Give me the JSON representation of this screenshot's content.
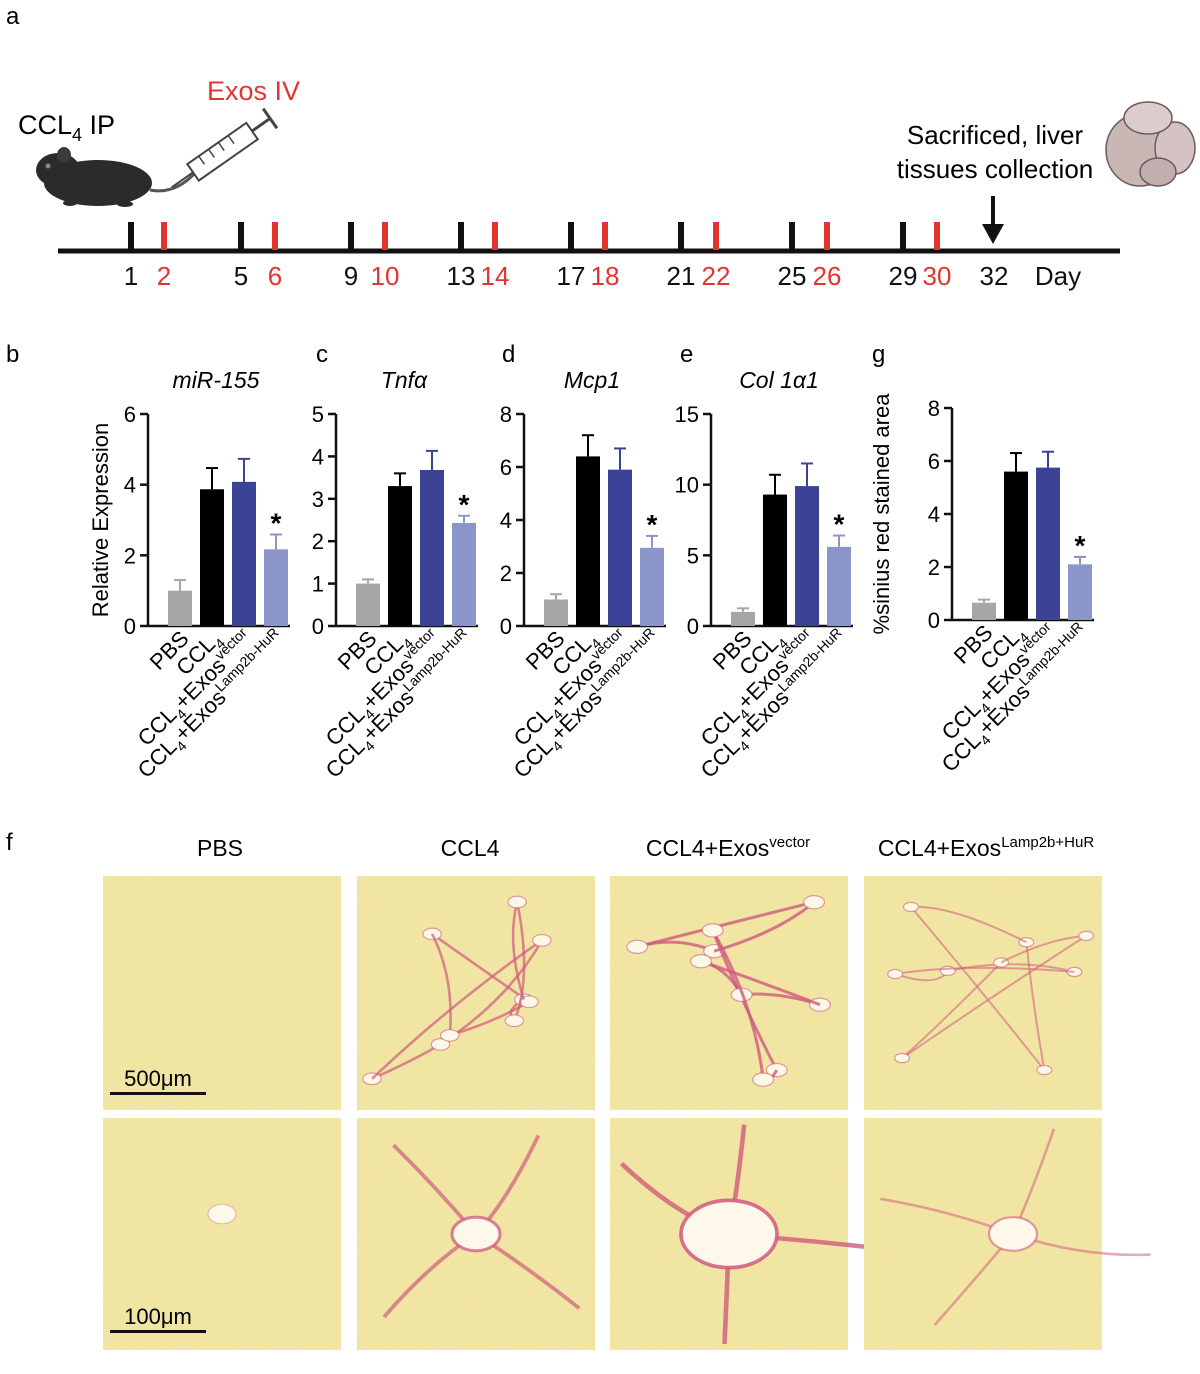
{
  "panels": {
    "a": {
      "letter": "a",
      "mouse_label": "CCL4 IP",
      "mouse_label_main": "CCL",
      "mouse_label_sub": "4",
      "mouse_label_tail": " IP",
      "injection_label": "Exos IV",
      "endpoint_label_line1": "Sacrificed, liver",
      "endpoint_label_line2": "tissues collection",
      "day_unit": "Day",
      "black_days": [
        "1",
        "5",
        "9",
        "13",
        "17",
        "21",
        "25",
        "29"
      ],
      "red_days": [
        "2",
        "6",
        "10",
        "14",
        "18",
        "22",
        "26",
        "30"
      ],
      "final_day": "32"
    },
    "f": {
      "letter": "f",
      "col1": "PBS",
      "col2": "CCL4",
      "col3_main": "CCL4+Exos",
      "col3_sup": "vector",
      "col4_main": "CCL4+Exos",
      "col4_sup": "Lamp2b+HuR",
      "scale_top": "500μm",
      "scale_bottom": "100μm"
    }
  },
  "group_labels": [
    {
      "main": "PBS",
      "sub": "",
      "mid": "",
      "sup": ""
    },
    {
      "main": "CCL",
      "sub": "4",
      "mid": "",
      "sup": ""
    },
    {
      "main": "CCL",
      "sub": "4",
      "mid": "+Exos",
      "sup": "vector"
    },
    {
      "main": "CCL",
      "sub": "4",
      "mid": "+Exos",
      "sup": "Lamp2b-HuR"
    }
  ],
  "colors": {
    "pbs": "#a6a6a6",
    "ccl4": "#000000",
    "vector": "#3c4396",
    "huR": "#8c95c9",
    "red": "#e3342f",
    "tissue": "#f6eaa7",
    "stain": "#cf5a7e"
  },
  "chart_data": [
    {
      "panel": "b",
      "type": "bar",
      "title": "miR-155",
      "ylabel": "Relative Expression",
      "ylim": [
        0,
        6
      ],
      "yticks": [
        "0",
        "2",
        "4",
        "6"
      ],
      "values": [
        1.0,
        3.87,
        4.08,
        2.17
      ],
      "errors": [
        0.3,
        0.6,
        0.65,
        0.42
      ],
      "significant": [
        false,
        false,
        false,
        true
      ],
      "star": "*"
    },
    {
      "panel": "c",
      "type": "bar",
      "title": "Tnfα",
      "ylabel": "",
      "ylim": [
        0,
        5
      ],
      "yticks": [
        "0",
        "1",
        "2",
        "3",
        "4",
        "5"
      ],
      "values": [
        1.0,
        3.3,
        3.68,
        2.43
      ],
      "errors": [
        0.1,
        0.3,
        0.45,
        0.17
      ],
      "significant": [
        false,
        false,
        false,
        true
      ],
      "star": "*"
    },
    {
      "panel": "d",
      "type": "bar",
      "title": "Mcp1",
      "ylabel": "",
      "ylim": [
        0,
        8
      ],
      "yticks": [
        "0",
        "2",
        "4",
        "6",
        "8"
      ],
      "values": [
        1.0,
        6.4,
        5.9,
        2.95
      ],
      "errors": [
        0.2,
        0.8,
        0.8,
        0.45
      ],
      "significant": [
        false,
        false,
        false,
        true
      ],
      "star": "*"
    },
    {
      "panel": "e",
      "type": "bar",
      "title": "Col 1α1",
      "ylabel": "",
      "ylim": [
        0,
        15
      ],
      "yticks": [
        "0",
        "5",
        "10",
        "15"
      ],
      "values": [
        1.0,
        9.3,
        9.9,
        5.6
      ],
      "errors": [
        0.25,
        1.4,
        1.6,
        0.8
      ],
      "significant": [
        false,
        false,
        false,
        true
      ],
      "star": "*"
    },
    {
      "panel": "g",
      "type": "bar",
      "title": "",
      "ylabel": "%sinius red stained area",
      "ylim": [
        0,
        8
      ],
      "yticks": [
        "0",
        "2",
        "4",
        "6",
        "8"
      ],
      "values": [
        0.65,
        5.6,
        5.75,
        2.1
      ],
      "errors": [
        0.12,
        0.7,
        0.6,
        0.28
      ],
      "significant": [
        false,
        false,
        false,
        true
      ],
      "star": "*"
    }
  ]
}
